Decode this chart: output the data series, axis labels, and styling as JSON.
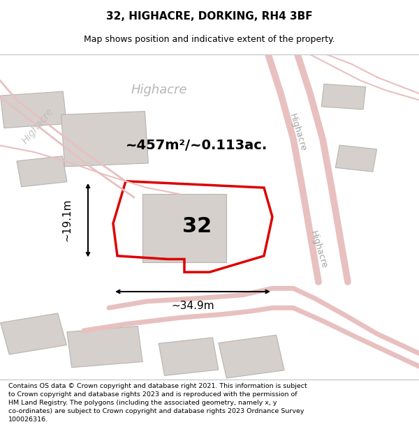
{
  "title": "32, HIGHACRE, DORKING, RH4 3BF",
  "subtitle": "Map shows position and indicative extent of the property.",
  "footer": "Contains OS data © Crown copyright and database right 2021. This information is subject\nto Crown copyright and database rights 2023 and is reproduced with the permission of\nHM Land Registry. The polygons (including the associated geometry, namely x, y\nco-ordinates) are subject to Crown copyright and database rights 2023 Ordnance Survey\n100026316.",
  "map_bg": "#f5f0ed",
  "road_color": "#e8c0c0",
  "building_fill": "#d5d0cc",
  "building_edge": "#b8b4b0",
  "highlight_red": "#dd0000",
  "area_label": "~457m²/~0.113ac.",
  "number_label": "32",
  "width_label": "~34.9m",
  "height_label": "~19.1m",
  "label_top_highacre": "Highacre",
  "label_left_highacre": "Highacre",
  "label_road1": "Highacre",
  "label_road2": "Highacre",
  "title_fontsize": 11,
  "subtitle_fontsize": 9,
  "footer_fontsize": 6.8,
  "area_fontsize": 14,
  "number_fontsize": 22,
  "dim_fontsize": 11,
  "street_fontsize": 9,
  "bg_label_fontsize": 12
}
